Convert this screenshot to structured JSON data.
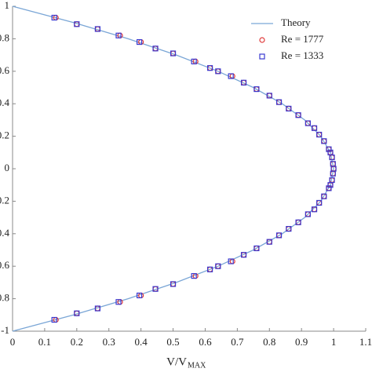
{
  "chart_data": {
    "type": "scatter",
    "xlabel": "V/V",
    "xlabel_sub": "MAX",
    "xlim": [
      0,
      1.1
    ],
    "xticks": [
      0,
      0.1,
      0.2,
      0.3,
      0.4,
      0.5,
      0.6,
      0.7,
      0.8,
      0.9,
      1,
      1.1
    ],
    "ylim": [
      -1,
      1
    ],
    "yticks": [
      1,
      0.8,
      0.6,
      0.4,
      0.2,
      0,
      -0.2,
      -0.4,
      -0.6,
      -0.8,
      -1
    ],
    "legend": "upper right",
    "series": [
      {
        "name": "Theory",
        "kind": "line",
        "color": "#7aa6d6",
        "x": [
          0,
          0.19,
          0.36,
          0.51,
          0.64,
          0.75,
          0.84,
          0.91,
          0.96,
          0.99,
          1,
          0.99,
          0.96,
          0.91,
          0.84,
          0.75,
          0.64,
          0.51,
          0.36,
          0.19,
          0
        ],
        "values": [
          1,
          0.9,
          0.8,
          0.7,
          0.6,
          0.5,
          0.4,
          0.3,
          0.2,
          0.1,
          0,
          -0.1,
          -0.2,
          -0.3,
          -0.4,
          -0.5,
          -0.6,
          -0.7,
          -0.8,
          -0.9,
          -1
        ]
      },
      {
        "name": "Re = 1777",
        "kind": "circle",
        "color": "#e03a3a",
        "x": [
          0.135,
          0.2,
          0.265,
          0.335,
          0.4,
          0.445,
          0.5,
          0.57,
          0.615,
          0.64,
          0.685,
          0.72,
          0.76,
          0.8,
          0.83,
          0.86,
          0.89,
          0.92,
          0.94,
          0.955,
          0.97,
          0.985,
          0.99,
          0.995,
          0.998,
          1,
          0.998,
          0.995,
          0.99,
          0.985,
          0.97,
          0.955,
          0.94,
          0.92,
          0.89,
          0.86,
          0.83,
          0.8,
          0.76,
          0.72,
          0.685,
          0.64,
          0.615,
          0.57,
          0.5,
          0.445,
          0.4,
          0.335,
          0.265,
          0.2,
          0.135
        ],
        "values": [
          0.93,
          0.89,
          0.86,
          0.82,
          0.78,
          0.74,
          0.71,
          0.66,
          0.62,
          0.6,
          0.57,
          0.53,
          0.49,
          0.45,
          0.41,
          0.37,
          0.33,
          0.28,
          0.25,
          0.21,
          0.17,
          0.12,
          0.1,
          0.07,
          0.03,
          0,
          -0.03,
          -0.07,
          -0.1,
          -0.12,
          -0.17,
          -0.21,
          -0.25,
          -0.28,
          -0.33,
          -0.37,
          -0.41,
          -0.45,
          -0.49,
          -0.53,
          -0.57,
          -0.6,
          -0.62,
          -0.66,
          -0.71,
          -0.74,
          -0.78,
          -0.82,
          -0.86,
          -0.89,
          -0.93
        ]
      },
      {
        "name": "Re = 1333",
        "kind": "square",
        "color": "#3a3ad0",
        "x": [
          0.13,
          0.2,
          0.265,
          0.33,
          0.395,
          0.445,
          0.5,
          0.565,
          0.615,
          0.64,
          0.68,
          0.72,
          0.76,
          0.8,
          0.83,
          0.86,
          0.89,
          0.92,
          0.94,
          0.955,
          0.97,
          0.985,
          0.99,
          0.995,
          0.998,
          1,
          0.998,
          0.995,
          0.99,
          0.985,
          0.97,
          0.955,
          0.94,
          0.92,
          0.89,
          0.86,
          0.83,
          0.8,
          0.76,
          0.72,
          0.68,
          0.64,
          0.615,
          0.565,
          0.5,
          0.445,
          0.395,
          0.33,
          0.265,
          0.2,
          0.13
        ],
        "values": [
          0.93,
          0.89,
          0.86,
          0.82,
          0.78,
          0.74,
          0.71,
          0.66,
          0.62,
          0.6,
          0.57,
          0.53,
          0.49,
          0.45,
          0.41,
          0.37,
          0.33,
          0.28,
          0.25,
          0.21,
          0.17,
          0.12,
          0.1,
          0.07,
          0.03,
          0,
          -0.03,
          -0.07,
          -0.1,
          -0.12,
          -0.17,
          -0.21,
          -0.25,
          -0.28,
          -0.33,
          -0.37,
          -0.41,
          -0.45,
          -0.49,
          -0.53,
          -0.57,
          -0.6,
          -0.62,
          -0.66,
          -0.71,
          -0.74,
          -0.78,
          -0.82,
          -0.86,
          -0.89,
          -0.93
        ]
      }
    ]
  }
}
